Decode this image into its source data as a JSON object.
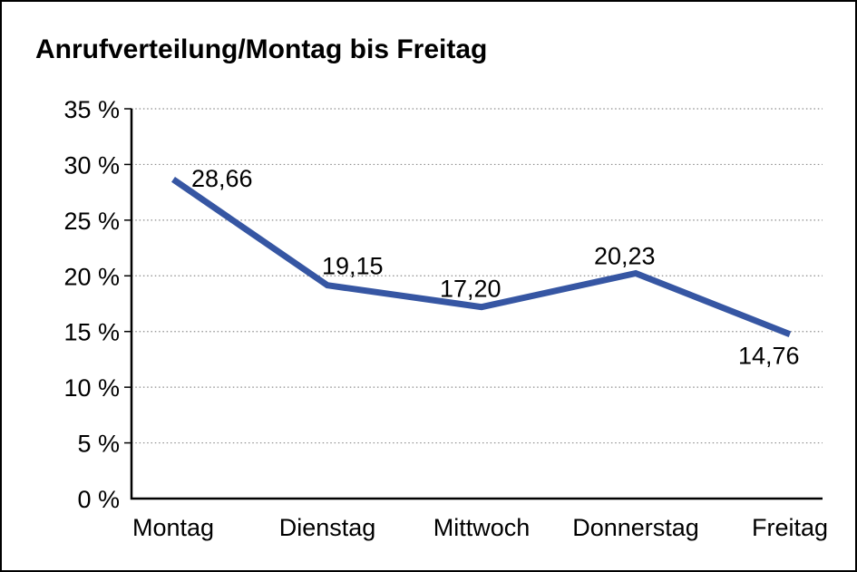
{
  "window": {
    "background": "#ffffff",
    "border_color": "#000000"
  },
  "chart_data": {
    "type": "line",
    "title": "Anrufverteilung/Montag bis Freitag",
    "categories": [
      "Montag",
      "Dienstag",
      "Mittwoch",
      "Donnerstag",
      "Freitag"
    ],
    "series": [
      {
        "values": [
          28.66,
          19.15,
          17.2,
          20.23,
          14.76
        ],
        "color": "#3656A3"
      }
    ],
    "data_labels": [
      "28,66",
      "19,15",
      "17,20",
      "20,23",
      "14,76"
    ],
    "xlabel": "",
    "ylabel": "",
    "ylim": [
      0,
      35
    ],
    "yticks": [
      0,
      5,
      10,
      15,
      20,
      25,
      30,
      35
    ],
    "ytick_labels": [
      "0 %",
      "5 %",
      "10 %",
      "15 %",
      "20 %",
      "25 %",
      "30 %",
      "35 %"
    ],
    "grid": "horizontal-dotted",
    "gridline_color": "#8c8c8c",
    "axis_color": "#000000",
    "text_color": "#000000",
    "legend": "none"
  }
}
